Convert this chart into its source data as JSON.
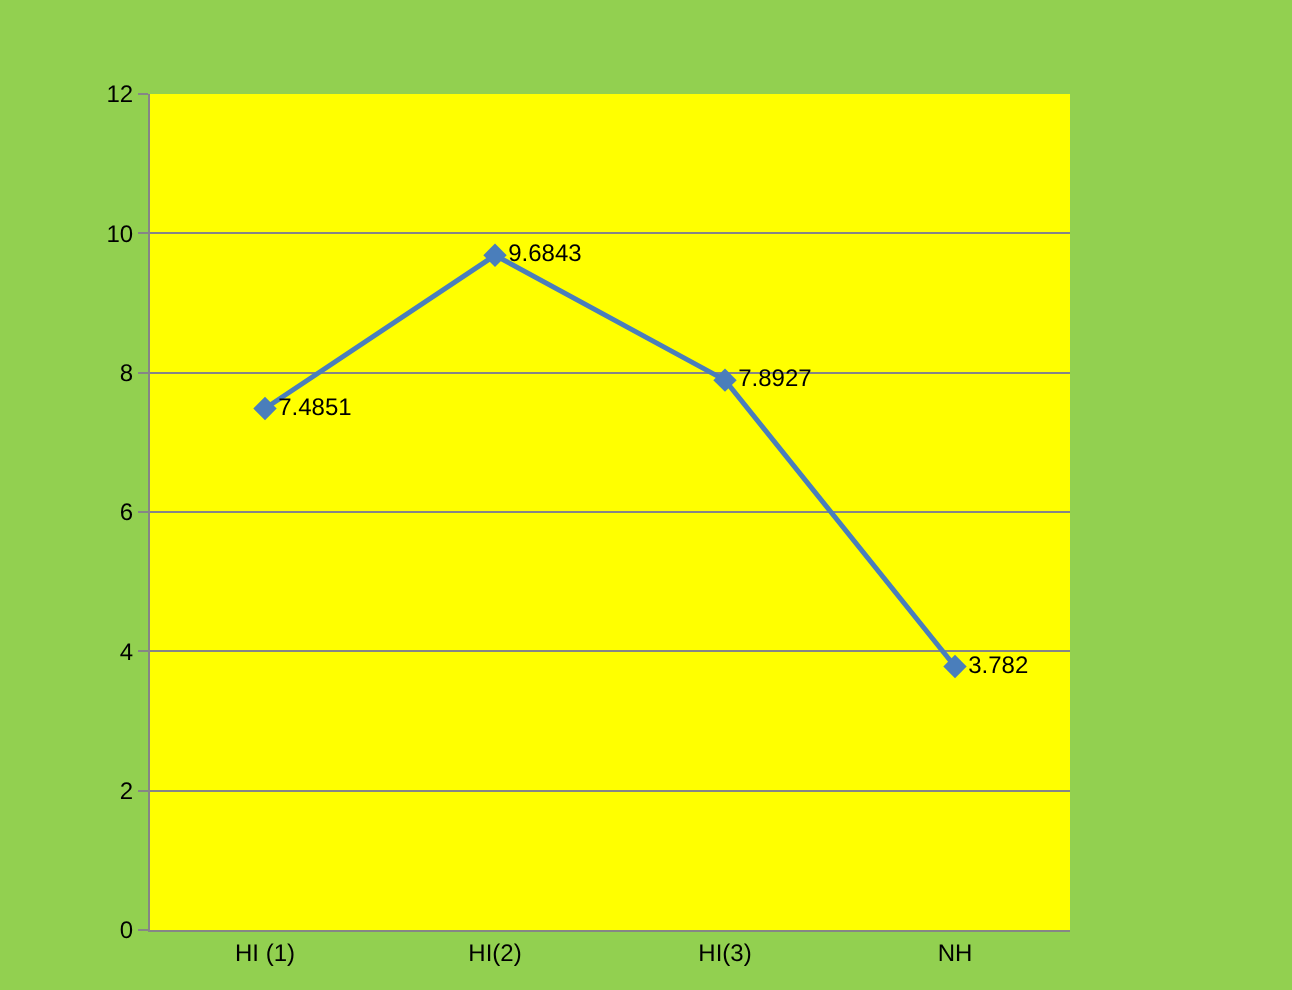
{
  "chart_data": {
    "type": "line",
    "categories": [
      "HI (1)",
      "HI(2)",
      "HI(3)",
      "NH"
    ],
    "series": [
      {
        "color": "#4a7ebb",
        "values": [
          7.4851,
          9.6843,
          7.8927,
          3.782
        ]
      }
    ],
    "ylim": [
      0,
      12
    ],
    "yticks": [
      0,
      2,
      4,
      6,
      8,
      10,
      12
    ],
    "grid": "y",
    "marker": "diamond",
    "line_style": "solid",
    "data_labels": true
  }
}
